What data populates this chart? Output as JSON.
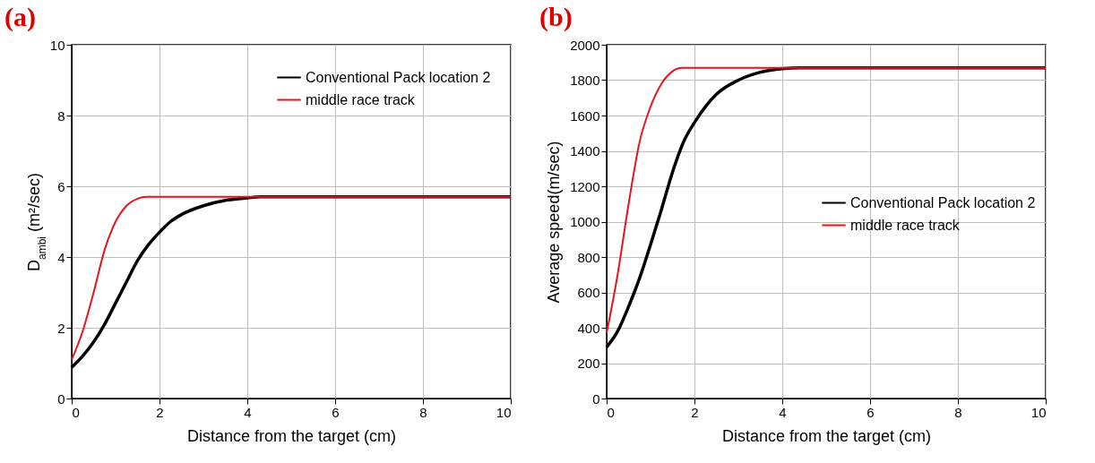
{
  "chart_data": [
    {
      "type": "line",
      "title": "(a)",
      "xlabel": "Distance from the target (cm)",
      "ylabel": "D$_{ambi}$ (m²/sec)",
      "xlim": [
        0,
        10
      ],
      "xticks": [
        0,
        2,
        4,
        6,
        8,
        10
      ],
      "ylim": [
        0,
        10
      ],
      "yticks": [
        0,
        2,
        4,
        6,
        8,
        10
      ],
      "grid": true,
      "legend": "top right",
      "line_style": "solid",
      "series": [
        {
          "name": "Conventional Pack location 2",
          "color": "#000000",
          "x": [
            0,
            0.25,
            0.5,
            0.75,
            1,
            1.25,
            1.5,
            1.75,
            2,
            2.25,
            2.5,
            3,
            3.5,
            4,
            4.3,
            10
          ],
          "values": [
            0.88,
            1.2,
            1.6,
            2.1,
            2.7,
            3.3,
            3.9,
            4.35,
            4.7,
            5.0,
            5.2,
            5.45,
            5.6,
            5.67,
            5.7,
            5.7
          ]
        },
        {
          "name": "middle race track",
          "color": "#e8141c",
          "x": [
            0,
            0.25,
            0.5,
            0.75,
            1,
            1.25,
            1.5,
            1.7,
            10
          ],
          "values": [
            1.1,
            1.9,
            3.0,
            4.2,
            5.0,
            5.45,
            5.65,
            5.7,
            5.7
          ]
        }
      ]
    },
    {
      "type": "line",
      "title": "(b)",
      "xlabel": "Distance from the target (cm)",
      "ylabel": "Average speed(m/sec)",
      "xlim": [
        0,
        10
      ],
      "xticks": [
        0,
        2,
        4,
        6,
        8,
        10
      ],
      "ylim": [
        0,
        2000
      ],
      "yticks": [
        0,
        200,
        400,
        600,
        800,
        1000,
        1200,
        1400,
        1600,
        1800,
        2000
      ],
      "grid": true,
      "legend": "right",
      "line_style": "solid",
      "series": [
        {
          "name": "Conventional Pack location 2",
          "color": "#000000",
          "x": [
            0,
            0.25,
            0.5,
            0.75,
            1,
            1.25,
            1.5,
            1.75,
            2,
            2.25,
            2.5,
            3,
            3.5,
            4,
            4.4,
            10
          ],
          "values": [
            290,
            380,
            520,
            680,
            870,
            1070,
            1280,
            1450,
            1560,
            1650,
            1720,
            1800,
            1845,
            1865,
            1870,
            1870
          ]
        },
        {
          "name": "middle race track",
          "color": "#e8141c",
          "x": [
            0,
            0.25,
            0.5,
            0.75,
            1,
            1.25,
            1.5,
            1.7,
            10
          ],
          "values": [
            370,
            700,
            1100,
            1450,
            1650,
            1780,
            1850,
            1870,
            1870
          ]
        }
      ]
    }
  ]
}
